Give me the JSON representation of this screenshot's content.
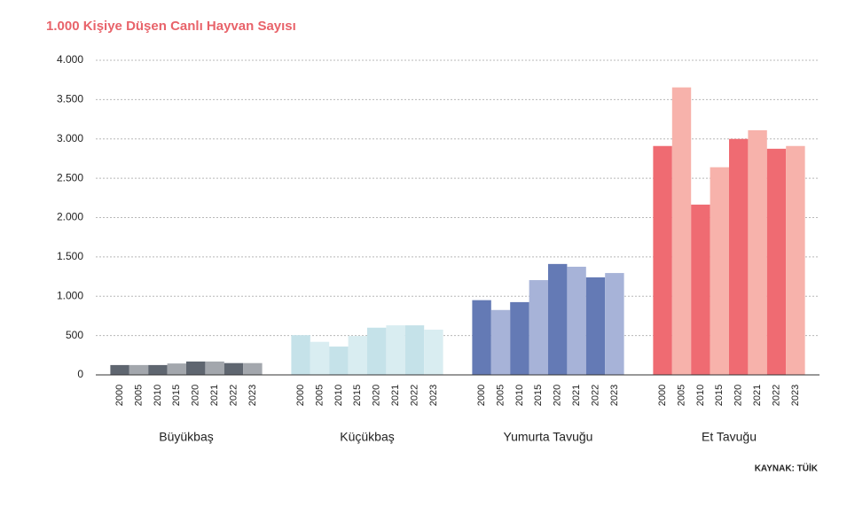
{
  "chart_data": {
    "type": "grouped_bar",
    "title": "1.000 Kişiye Düşen Canlı Hayvan Sayısı",
    "source": "KAYNAK: TÜİK",
    "years": [
      "2000",
      "2005",
      "2010",
      "2015",
      "2020",
      "2021",
      "2022",
      "2023"
    ],
    "groups": [
      {
        "name": "Büyükbaş",
        "colors": [
          "#5f6670",
          "#a3a7ad"
        ],
        "values": [
          125,
          125,
          125,
          145,
          170,
          170,
          150,
          150
        ]
      },
      {
        "name": "Küçükbaş",
        "colors": [
          "#c5e2e9",
          "#d9edf1"
        ],
        "values": [
          505,
          420,
          360,
          495,
          600,
          630,
          630,
          575
        ]
      },
      {
        "name": "Yumurta Tavuğu",
        "colors": [
          "#647ab5",
          "#a7b3d8"
        ],
        "values": [
          950,
          825,
          925,
          1205,
          1410,
          1375,
          1240,
          1295
        ]
      },
      {
        "name": "Et Tavuğu",
        "colors": [
          "#ef6b72",
          "#f7b2ab"
        ],
        "values": [
          2910,
          3655,
          2165,
          2640,
          3000,
          3110,
          2875,
          2910
        ]
      }
    ],
    "ylim": [
      0,
      4000
    ],
    "yticks": [
      0,
      500,
      {
        "value": 1000,
        "label": "1.000"
      },
      {
        "value": 1500,
        "label": "1.500"
      },
      {
        "value": 2000,
        "label": "2.000"
      },
      {
        "value": 2500,
        "label": "2.500"
      },
      {
        "value": 3000,
        "label": "3.000"
      },
      {
        "value": 3500,
        "label": "3.500"
      },
      {
        "value": 4000,
        "label": "4.000"
      }
    ],
    "grid": true
  }
}
